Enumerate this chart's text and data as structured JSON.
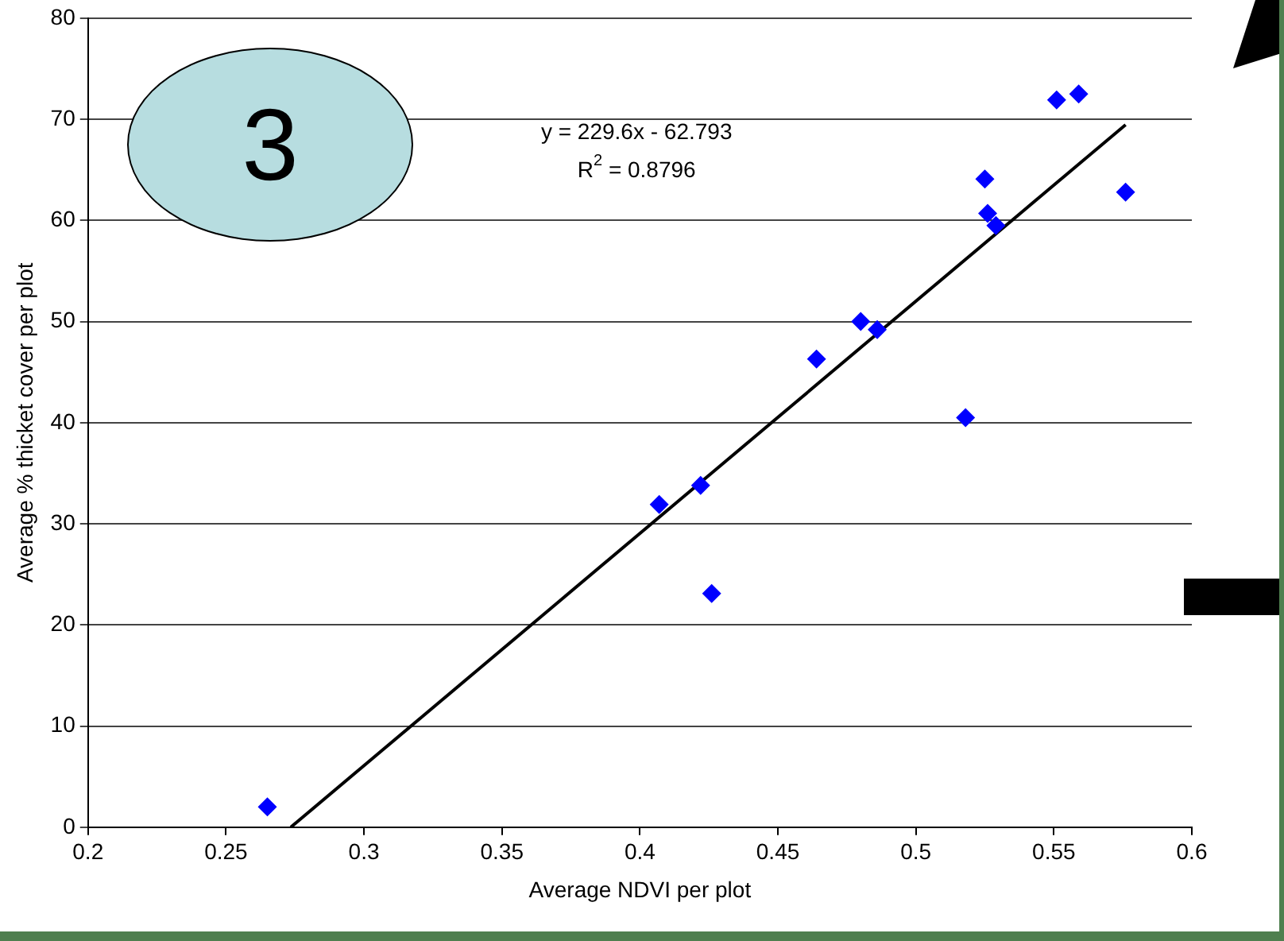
{
  "chart_data": {
    "type": "scatter",
    "xlabel": "Average NDVI per plot",
    "ylabel": "Average % thicket cover per plot",
    "xlim": [
      0.2,
      0.6
    ],
    "xticks": [
      0.2,
      0.25,
      0.3,
      0.35,
      0.4,
      0.45,
      0.5,
      0.55,
      0.6
    ],
    "ylim": [
      0,
      80
    ],
    "yticks": [
      0,
      10,
      20,
      30,
      40,
      50,
      60,
      70,
      80
    ],
    "grid": "y",
    "legend": false,
    "marker": "diamond",
    "annotations": [
      "3",
      "y = 229.6x - 62.793",
      "R$^{2}$ = 0.8796"
    ],
    "series": [
      {
        "color": "#0000ff",
        "x": [
          0.265,
          0.407,
          0.422,
          0.426,
          0.464,
          0.48,
          0.486,
          0.518,
          0.525,
          0.526,
          0.529,
          0.551,
          0.559,
          0.576
        ],
        "values": [
          2,
          31.9,
          33.8,
          23.1,
          46.3,
          50,
          49.2,
          40.5,
          64.1,
          60.7,
          59.5,
          71.9,
          72.5,
          62.8
        ]
      },
      {
        "type": "line",
        "color": "#000000",
        "marker": "none",
        "x": [
          0.2735,
          0.576
        ],
        "values": [
          0,
          69.46
        ]
      }
    ]
  }
}
